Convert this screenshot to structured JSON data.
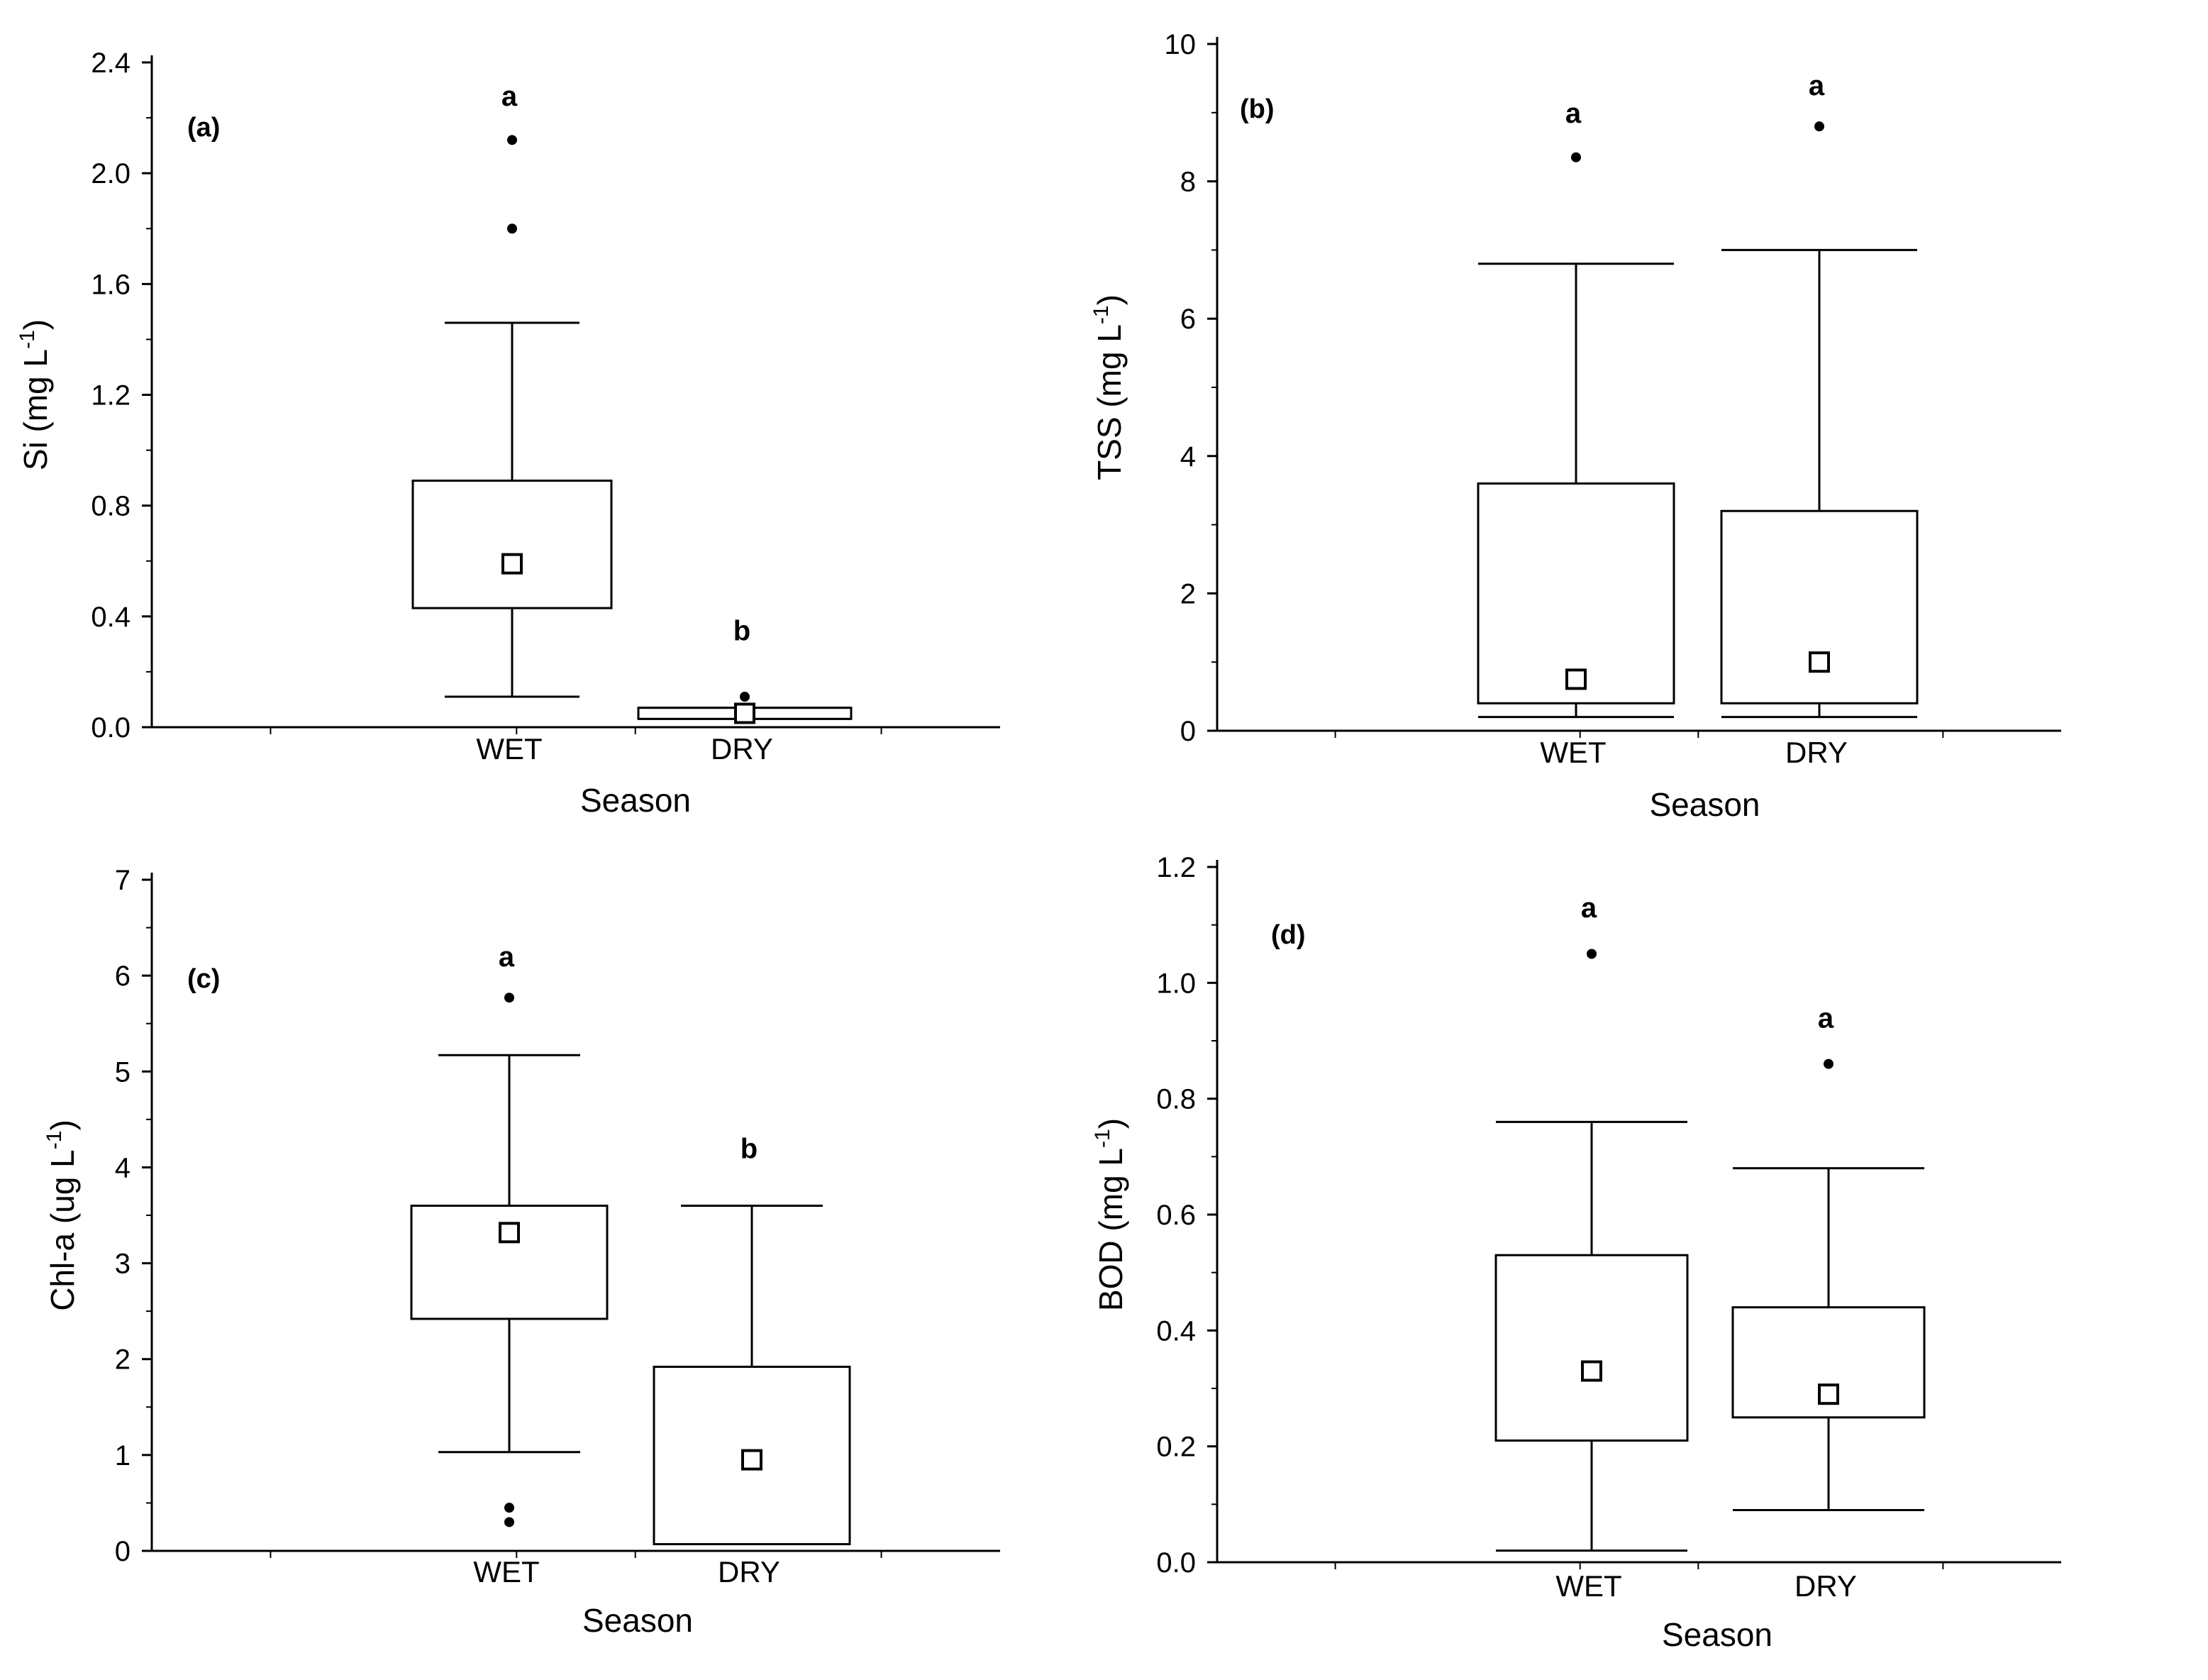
{
  "chart_data": [
    {
      "id": "a",
      "type": "box",
      "panel_label": "(a)",
      "xlabel": "Season",
      "ylabel": "Si (mg L",
      "ylabel_sup": "-1",
      "ylabel_close": ")",
      "ylim": [
        0,
        2.4
      ],
      "yticks": [
        0.0,
        0.4,
        0.8,
        1.2,
        1.6,
        2.0,
        2.4
      ],
      "ytick_labels": [
        "0.0",
        "0.4",
        "0.8",
        "1.2",
        "1.6",
        "2.0",
        "2.4"
      ],
      "categories": [
        "WET",
        "DRY"
      ],
      "boxes": [
        {
          "category": "WET",
          "whisker_low": 0.11,
          "q1": 0.43,
          "median": 0.59,
          "q3": 0.89,
          "whisker_high": 1.46,
          "outliers": [
            1.8,
            2.12
          ],
          "letter": "a",
          "letter_value": 2.28
        },
        {
          "category": "DRY",
          "whisker_low": 0.03,
          "q1": 0.03,
          "median": 0.05,
          "q3": 0.07,
          "whisker_high": 0.07,
          "outliers": [
            0.11
          ],
          "letter": "b",
          "letter_value": 0.35
        }
      ]
    },
    {
      "id": "b",
      "type": "box",
      "panel_label": "(b)",
      "xlabel": "Season",
      "ylabel": "TSS (mg L",
      "ylabel_sup": "-1",
      "ylabel_close": ")",
      "ylim": [
        0,
        10
      ],
      "yticks": [
        0,
        2,
        4,
        6,
        8,
        10
      ],
      "ytick_labels": [
        "0",
        "2",
        "4",
        "6",
        "8",
        "10"
      ],
      "categories": [
        "WET",
        "DRY"
      ],
      "boxes": [
        {
          "category": "WET",
          "whisker_low": 0.2,
          "q1": 0.4,
          "median": 0.75,
          "q3": 3.6,
          "whisker_high": 6.8,
          "outliers": [
            8.35
          ],
          "letter": "a",
          "letter_value": 9.0
        },
        {
          "category": "DRY",
          "whisker_low": 0.2,
          "q1": 0.4,
          "median": 1.0,
          "q3": 3.2,
          "whisker_high": 7.0,
          "outliers": [
            8.8
          ],
          "letter": "a",
          "letter_value": 9.4
        }
      ]
    },
    {
      "id": "c",
      "type": "box",
      "panel_label": "(c)",
      "xlabel": "Season",
      "ylabel": "Chl-a (ug L",
      "ylabel_sup": "-1",
      "ylabel_close": ")",
      "ylim": [
        0,
        7
      ],
      "yticks": [
        0,
        1,
        2,
        3,
        4,
        5,
        6,
        7
      ],
      "ytick_labels": [
        "0",
        "1",
        "2",
        "3",
        "4",
        "5",
        "6",
        "7"
      ],
      "categories": [
        "WET",
        "DRY"
      ],
      "boxes": [
        {
          "category": "WET",
          "whisker_low": 1.03,
          "q1": 2.42,
          "median": 3.32,
          "q3": 3.6,
          "whisker_high": 5.17,
          "outliers": [
            0.3,
            0.45,
            5.77
          ],
          "letter": "a",
          "letter_value": 6.2
        },
        {
          "category": "DRY",
          "whisker_low": 0.07,
          "q1": 0.07,
          "median": 0.95,
          "q3": 1.92,
          "whisker_high": 3.6,
          "outliers": [],
          "letter": "b",
          "letter_value": 4.2
        }
      ]
    },
    {
      "id": "d",
      "type": "box",
      "panel_label": "(d)",
      "xlabel": "Season",
      "ylabel": "BOD (mg L",
      "ylabel_sup": "-1",
      "ylabel_close": ")",
      "ylim": [
        0,
        1.2
      ],
      "yticks": [
        0.0,
        0.2,
        0.4,
        0.6,
        0.8,
        1.0,
        1.2
      ],
      "ytick_labels": [
        "0.0",
        "0.2",
        "0.4",
        "0.6",
        "0.8",
        "1.0",
        "1.2"
      ],
      "categories": [
        "WET",
        "DRY"
      ],
      "boxes": [
        {
          "category": "WET",
          "whisker_low": 0.02,
          "q1": 0.21,
          "median": 0.33,
          "q3": 0.53,
          "whisker_high": 0.76,
          "outliers": [
            1.05
          ],
          "letter": "a",
          "letter_value": 1.13
        },
        {
          "category": "DRY",
          "whisker_low": 0.09,
          "q1": 0.25,
          "median": 0.29,
          "q3": 0.44,
          "whisker_high": 0.68,
          "outliers": [
            0.86
          ],
          "letter": "a",
          "letter_value": 0.94
        }
      ]
    }
  ]
}
